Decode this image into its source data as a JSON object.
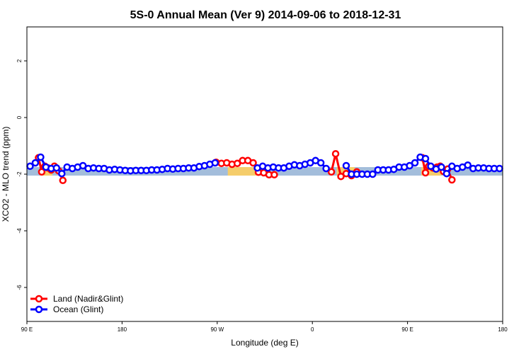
{
  "chart_data": {
    "type": "line",
    "title": "5S-0 Annual Mean (Ver 9)   2014-09-06 to 2018-12-31",
    "xlabel": "Longitude (deg E)",
    "ylabel": "XCO2 - MLO trend (ppm)",
    "xlim": [
      90,
      540
    ],
    "ylim": [
      -7.2,
      3.2
    ],
    "x_ticks": [
      {
        "value": 90,
        "label": "90 E"
      },
      {
        "value": 180,
        "label": "180"
      },
      {
        "value": 270,
        "label": "90 W"
      },
      {
        "value": 360,
        "label": "0"
      },
      {
        "value": 450,
        "label": "90 E"
      },
      {
        "value": 540,
        "label": "180"
      }
    ],
    "y_ticks": [
      {
        "value": -6,
        "label": "-6"
      },
      {
        "value": -4,
        "label": "-4"
      },
      {
        "value": -2,
        "label": "-2"
      },
      {
        "value": 0,
        "label": "0"
      },
      {
        "value": 2,
        "label": "2"
      }
    ],
    "legend_position": "bottom-left",
    "background_band": {
      "y_min": -2.05,
      "y_max": -1.75,
      "color": "#a3bddb"
    },
    "land_bands": [
      {
        "x_min": 103,
        "x_min_note": "",
        "x_max": 114
      },
      {
        "x_min": 280,
        "x_max": 310
      },
      {
        "x_min": 383,
        "x_max": 400
      },
      {
        "x_min": 463,
        "x_max": 482
      }
    ],
    "land_band_color": "#f5cd6b",
    "series": [
      {
        "name": "Land (Nadir&Glint)",
        "color": "#ff0000",
        "segments": [
          [
            [
              101,
              -1.42
            ],
            [
              104,
              -1.92
            ],
            [
              107,
              -1.72
            ],
            [
              110,
              -1.78
            ],
            [
              113,
              -1.85
            ],
            [
              116,
              -1.72
            ],
            [
              120,
              -1.88
            ],
            [
              124,
              -2.22
            ]
          ],
          [
            [
              269,
              -1.58
            ],
            [
              274,
              -1.62
            ],
            [
              279,
              -1.6
            ],
            [
              284,
              -1.65
            ],
            [
              289,
              -1.62
            ],
            [
              294,
              -1.52
            ],
            [
              299,
              -1.52
            ],
            [
              304,
              -1.6
            ],
            [
              309,
              -1.93
            ],
            [
              314,
              -1.95
            ],
            [
              319,
              -2.02
            ],
            [
              324,
              -2.02
            ]
          ],
          [
            [
              378,
              -1.92
            ],
            [
              382,
              -1.28
            ],
            [
              387,
              -2.08
            ],
            [
              392,
              -1.98
            ],
            [
              397,
              -2.05
            ],
            [
              402,
              -1.92
            ]
          ],
          [
            [
              464,
              -1.42
            ],
            [
              467,
              -1.95
            ],
            [
              470,
              -1.72
            ],
            [
              474,
              -1.78
            ],
            [
              478,
              -1.75
            ],
            [
              481,
              -1.72
            ],
            [
              484,
              -1.9
            ],
            [
              488,
              -1.82
            ],
            [
              492,
              -2.2
            ]
          ]
        ]
      },
      {
        "name": "Ocean (Glint)",
        "color": "#0000ff",
        "segments": [
          [
            [
              93,
              -1.72
            ],
            [
              98,
              -1.6
            ],
            [
              103,
              -1.4
            ],
            [
              108,
              -1.75
            ],
            [
              113,
              -1.8
            ],
            [
              118,
              -1.78
            ],
            [
              123,
              -1.98
            ],
            [
              128,
              -1.75
            ],
            [
              133,
              -1.8
            ],
            [
              138,
              -1.75
            ],
            [
              143,
              -1.7
            ],
            [
              148,
              -1.8
            ],
            [
              153,
              -1.78
            ],
            [
              158,
              -1.8
            ],
            [
              163,
              -1.8
            ],
            [
              168,
              -1.85
            ],
            [
              173,
              -1.83
            ],
            [
              178,
              -1.85
            ],
            [
              183,
              -1.87
            ],
            [
              188,
              -1.88
            ],
            [
              193,
              -1.87
            ],
            [
              198,
              -1.87
            ],
            [
              203,
              -1.87
            ],
            [
              208,
              -1.85
            ],
            [
              213,
              -1.85
            ],
            [
              218,
              -1.83
            ],
            [
              223,
              -1.8
            ],
            [
              228,
              -1.82
            ],
            [
              233,
              -1.8
            ],
            [
              238,
              -1.8
            ],
            [
              243,
              -1.78
            ],
            [
              248,
              -1.78
            ],
            [
              253,
              -1.73
            ],
            [
              258,
              -1.7
            ],
            [
              263,
              -1.65
            ],
            [
              268,
              -1.6
            ]
          ],
          [
            [
              308,
              -1.78
            ],
            [
              313,
              -1.72
            ],
            [
              318,
              -1.78
            ],
            [
              323,
              -1.75
            ],
            [
              328,
              -1.78
            ],
            [
              333,
              -1.78
            ],
            [
              338,
              -1.72
            ],
            [
              343,
              -1.67
            ],
            [
              348,
              -1.7
            ],
            [
              353,
              -1.65
            ],
            [
              358,
              -1.6
            ],
            [
              363,
              -1.52
            ],
            [
              368,
              -1.6
            ],
            [
              373,
              -1.8
            ]
          ],
          [
            [
              392,
              -1.7
            ],
            [
              397,
              -2.0
            ],
            [
              402,
              -2.0
            ],
            [
              407,
              -2.0
            ],
            [
              412,
              -2.0
            ],
            [
              417,
              -2.0
            ],
            [
              422,
              -1.85
            ],
            [
              427,
              -1.85
            ],
            [
              432,
              -1.85
            ],
            [
              437,
              -1.83
            ],
            [
              442,
              -1.75
            ],
            [
              447,
              -1.75
            ],
            [
              452,
              -1.7
            ],
            [
              457,
              -1.6
            ],
            [
              462,
              -1.4
            ],
            [
              467,
              -1.45
            ],
            [
              472,
              -1.72
            ],
            [
              477,
              -1.82
            ],
            [
              482,
              -1.75
            ],
            [
              487,
              -1.98
            ],
            [
              492,
              -1.72
            ],
            [
              497,
              -1.8
            ],
            [
              502,
              -1.75
            ],
            [
              507,
              -1.68
            ],
            [
              512,
              -1.8
            ],
            [
              517,
              -1.78
            ],
            [
              522,
              -1.78
            ],
            [
              527,
              -1.8
            ],
            [
              532,
              -1.8
            ],
            [
              537,
              -1.8
            ]
          ]
        ]
      }
    ]
  }
}
